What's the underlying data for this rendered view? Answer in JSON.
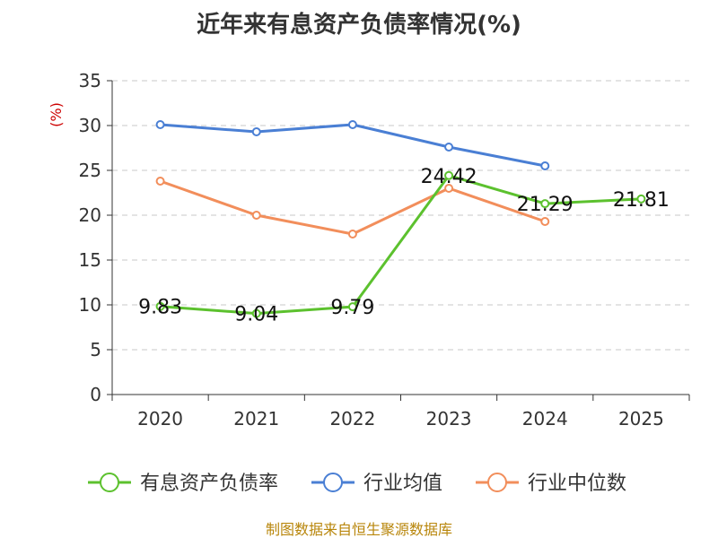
{
  "chart_data": {
    "type": "line",
    "title": "近年来有息资产负债率情况(%)",
    "ylabel": "(%)",
    "xlabel": "",
    "ylim": [
      0,
      35
    ],
    "yticks": [
      0,
      5,
      10,
      15,
      20,
      25,
      30,
      35
    ],
    "categories": [
      "2020",
      "2021",
      "2022",
      "2023",
      "2024",
      "2025"
    ],
    "grid": true,
    "legend_position": "bottom",
    "series": [
      {
        "name": "有息资产负债率",
        "color": "#5cc12e",
        "values": [
          9.83,
          9.04,
          9.79,
          24.42,
          21.29,
          21.81
        ],
        "labels": [
          "9.83",
          "9.04",
          "9.79",
          "24.42",
          "21.29",
          "21.81"
        ]
      },
      {
        "name": "行业均值",
        "color": "#4a7fd4",
        "values": [
          30.1,
          29.3,
          30.1,
          27.6,
          25.5,
          null
        ]
      },
      {
        "name": "行业中位数",
        "color": "#f28e5b",
        "values": [
          23.8,
          20.0,
          17.9,
          23.0,
          19.3,
          null
        ]
      }
    ],
    "source": "制图数据来自恒生聚源数据库"
  }
}
